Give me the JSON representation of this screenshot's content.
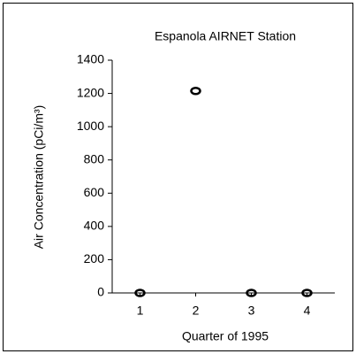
{
  "chart_data": {
    "type": "scatter",
    "title": "Espanola AIRNET Station",
    "x_label": "Quarter of 1995",
    "y_label": "Air Concentration (pCi/m³)",
    "x": [
      1,
      2,
      3,
      4
    ],
    "values": [
      0,
      1215,
      0,
      0
    ],
    "color": "#000000",
    "xlim": [
      0.5,
      4.5
    ],
    "xticks": [
      1,
      2,
      3,
      4
    ],
    "ylim": [
      0,
      1400
    ],
    "yticks": [
      0,
      200,
      400,
      600,
      800,
      1000,
      1200,
      1400
    ],
    "grid": false
  }
}
